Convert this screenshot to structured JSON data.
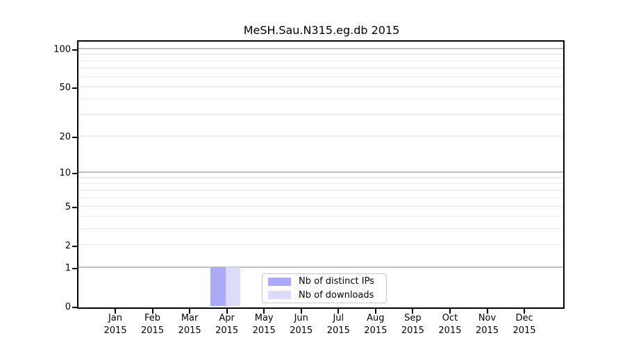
{
  "chart_data": {
    "type": "bar",
    "title": "MeSH.Sau.N315.eg.db 2015",
    "categories": [
      "Jan",
      "Feb",
      "Mar",
      "Apr",
      "May",
      "Jun",
      "Jul",
      "Aug",
      "Sep",
      "Oct",
      "Nov",
      "Dec"
    ],
    "year_label": "2015",
    "series": [
      {
        "name": "Nb of distinct IPs",
        "color": "#aaaaf8",
        "values": [
          0,
          0,
          0,
          1,
          0,
          0,
          0,
          0,
          0,
          0,
          0,
          0
        ]
      },
      {
        "name": "Nb of downloads",
        "color": "#dcdcfa",
        "values": [
          0,
          0,
          0,
          1,
          0,
          0,
          0,
          0,
          0,
          0,
          0,
          0
        ]
      }
    ],
    "yticks": [
      0,
      1,
      2,
      5,
      10,
      20,
      50,
      100
    ],
    "minor_gridlines": [
      2,
      3,
      4,
      5,
      6,
      7,
      8,
      9,
      20,
      30,
      40,
      50,
      60,
      70,
      80,
      90
    ],
    "major_gridlines": [
      1,
      10,
      100
    ],
    "ylim": [
      0,
      116
    ],
    "yscale": "log1p",
    "xlabel": "",
    "ylabel": "",
    "grid": "horizontal",
    "legend_position": "bottom-center-inside"
  },
  "colors": {
    "distinct_ips": "#aaaaf8",
    "downloads": "#dcdcfa",
    "grid_minor": "#ececec",
    "grid_major": "#bdbdbd",
    "spine": "#000000",
    "legend_border": "#c9c9c9"
  }
}
